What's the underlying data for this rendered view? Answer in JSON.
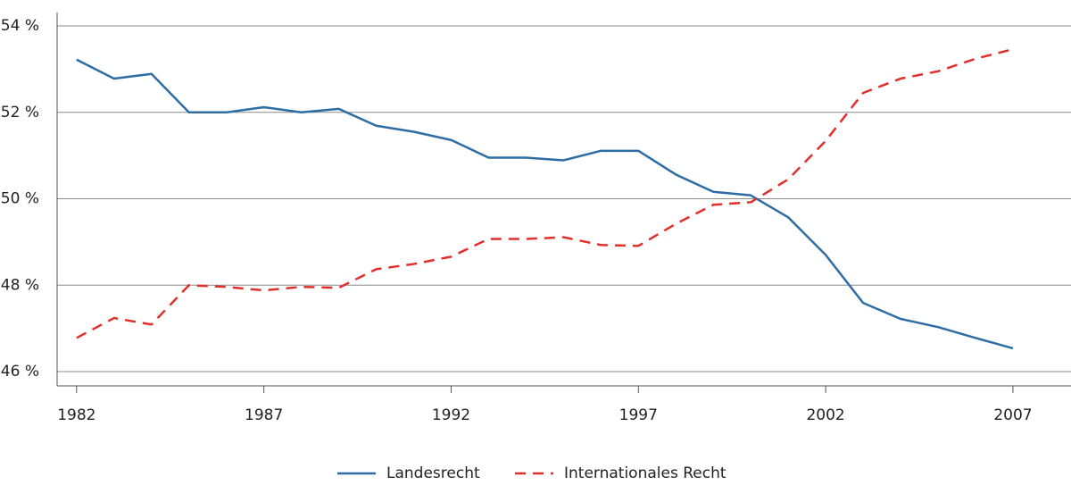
{
  "chart_data": {
    "type": "line",
    "x": [
      1982,
      1983,
      1984,
      1985,
      1986,
      1987,
      1988,
      1989,
      1990,
      1991,
      1992,
      1993,
      1994,
      1995,
      1996,
      1997,
      1998,
      1999,
      2000,
      2001,
      2002,
      2003,
      2004,
      2005,
      2006,
      2007
    ],
    "series": [
      {
        "name": "Landesrecht",
        "color": "#2e6da4",
        "dash": "solid",
        "values": [
          53.22,
          52.78,
          52.89,
          52.0,
          52.0,
          52.12,
          52.0,
          52.08,
          51.69,
          51.55,
          51.36,
          50.95,
          50.95,
          50.89,
          51.11,
          51.11,
          50.56,
          50.16,
          50.08,
          49.57,
          48.7,
          47.59,
          47.22,
          47.03,
          46.78,
          46.54
        ]
      },
      {
        "name": "Internationales Recht",
        "color": "#e1302c",
        "dash": "dashed",
        "values": [
          46.78,
          47.24,
          47.09,
          48.0,
          47.96,
          47.88,
          47.96,
          47.94,
          48.37,
          48.49,
          48.66,
          49.07,
          49.07,
          49.11,
          48.93,
          48.91,
          49.42,
          49.86,
          49.92,
          50.45,
          51.34,
          52.45,
          52.78,
          52.95,
          53.24,
          53.46
        ]
      }
    ],
    "xlim": [
      1981.48,
      2008.55
    ],
    "xticks": [
      1982,
      1987,
      1992,
      1997,
      2002,
      2007
    ],
    "ylim": [
      45.67,
      54.31
    ],
    "yticks": [
      {
        "value": 46,
        "label": "46 %"
      },
      {
        "value": 48,
        "label": "48 %"
      },
      {
        "value": 50,
        "label": "50 %"
      },
      {
        "value": 52,
        "label": "52 %"
      },
      {
        "value": 54,
        "label": "54 %"
      }
    ],
    "grid": true,
    "legend": "bottom"
  }
}
